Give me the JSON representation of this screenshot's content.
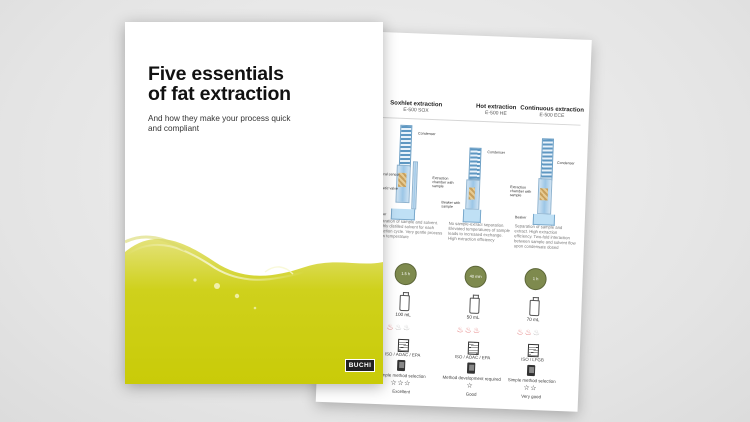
{
  "cover": {
    "title_line1": "Five essentials",
    "title_line2": "of fat extraction",
    "subtitle_line1": "And how they make your process quick",
    "subtitle_line2": "and compliant",
    "logo": "BUCHI"
  },
  "sheet": {
    "columns": [
      {
        "title": "Soxhlet extraction",
        "model": "E-500 SOX",
        "labels": [
          "Condenser",
          "Optical sensor",
          "Magnetic valve",
          "Beaker"
        ],
        "description": "Separation of sample and solvent. Freshly distilled solvent for each extraction cycle. Very gentle process at low temperature",
        "time": "1.5 h",
        "volume": "100 mL",
        "standard": "ISO / AOAC / EPA",
        "method": "Simple method selection",
        "rating_stars": "☆☆☆",
        "rating": "Excellent"
      },
      {
        "title": "Hot extraction",
        "model": "E-500 HE",
        "labels": [
          "Condenser",
          "Extraction chamber with sample",
          "Beaker with sample"
        ],
        "description": "No sample-extract separation. Elevated temperatures of sample leads to increased exchange. High extraction efficiency",
        "time": "40 min",
        "volume": "50 mL",
        "standard": "ISO / AOAC / EPA",
        "method": "Method development required",
        "rating_stars": "☆",
        "rating": "Good"
      },
      {
        "title": "Continuous extraction",
        "model": "E-500 ECE",
        "labels": [
          "Condenser",
          "Extraction chamber with sample",
          "Beaker"
        ],
        "description": "Separation of sample and extract. High extraction efficiency. Two-fold interaction between sample and solvent flow upon condensate dosed",
        "time": "1 h",
        "volume": "70 mL",
        "standard": "ISO / LFGB",
        "method": "Simple method selection",
        "rating_stars": "☆☆",
        "rating": "Very good"
      }
    ]
  }
}
